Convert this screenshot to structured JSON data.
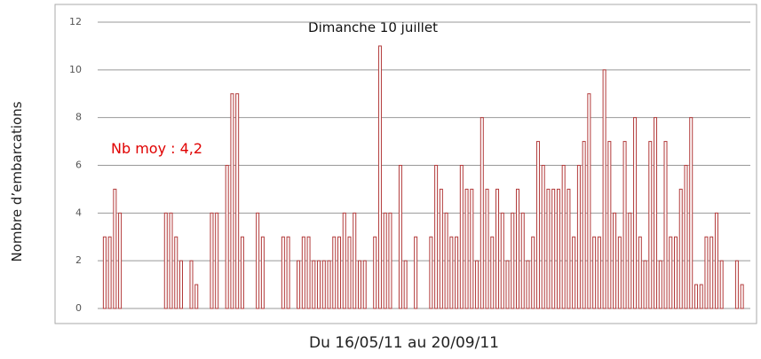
{
  "chart_data": {
    "type": "bar",
    "annotation": "Dimanche 10 juillet",
    "mean_label": "Nb moy : 4,2",
    "y_label": "Nombre d’embarcations",
    "x_label": "Du 16/05/11 au 20/09/11",
    "color": "#b23a3a",
    "categories": [
      null,
      null,
      null,
      null,
      null,
      null,
      null,
      null,
      null,
      null,
      null,
      null,
      null,
      null,
      null,
      null,
      null,
      null,
      null,
      null,
      null,
      null,
      null,
      null,
      null,
      null,
      null,
      null,
      null,
      null,
      null,
      null,
      null,
      null,
      null,
      null,
      null,
      null,
      null,
      null,
      null,
      null,
      null,
      null,
      null,
      null,
      null,
      null,
      null,
      null,
      null,
      null,
      null,
      null,
      null,
      null,
      null,
      null,
      null,
      null,
      null,
      null,
      null,
      null,
      null,
      null,
      null,
      null,
      null,
      null,
      null,
      null,
      null,
      null,
      null,
      null,
      null,
      null,
      null,
      null,
      null,
      null,
      null,
      null,
      null,
      null,
      null,
      null,
      null,
      null,
      null,
      null,
      null,
      null,
      null,
      null,
      null,
      null,
      null,
      null,
      null,
      null,
      null,
      null,
      null,
      null,
      null,
      null,
      null,
      null,
      null,
      null,
      null,
      null,
      null,
      null,
      null,
      null,
      null,
      null,
      null,
      null,
      null,
      null,
      null,
      null,
      null,
      null
    ],
    "values": [
      3,
      3,
      5,
      4,
      0,
      0,
      0,
      0,
      0,
      0,
      0,
      0,
      4,
      4,
      3,
      2,
      0,
      2,
      1,
      0,
      0,
      4,
      4,
      0,
      6,
      9,
      9,
      3,
      0,
      0,
      4,
      3,
      0,
      0,
      0,
      3,
      3,
      0,
      2,
      3,
      3,
      2,
      2,
      2,
      2,
      3,
      3,
      4,
      3,
      4,
      2,
      2,
      0,
      3,
      11,
      4,
      4,
      0,
      6,
      2,
      0,
      3,
      0,
      0,
      3,
      6,
      5,
      4,
      3,
      3,
      6,
      5,
      5,
      2,
      8,
      5,
      3,
      5,
      4,
      2,
      4,
      5,
      4,
      2,
      3,
      7,
      6,
      5,
      5,
      5,
      6,
      5,
      3,
      6,
      7,
      9,
      3,
      3,
      10,
      7,
      4,
      3,
      7,
      4,
      8,
      3,
      2,
      7,
      8,
      2,
      7,
      3,
      3,
      5,
      6,
      8,
      1,
      1,
      3,
      3,
      4,
      2,
      0,
      0,
      2,
      1,
      0,
      0
    ],
    "ylim": [
      0,
      12
    ],
    "yticks": [
      0,
      2,
      4,
      6,
      8,
      10,
      12
    ],
    "grid": true
  }
}
